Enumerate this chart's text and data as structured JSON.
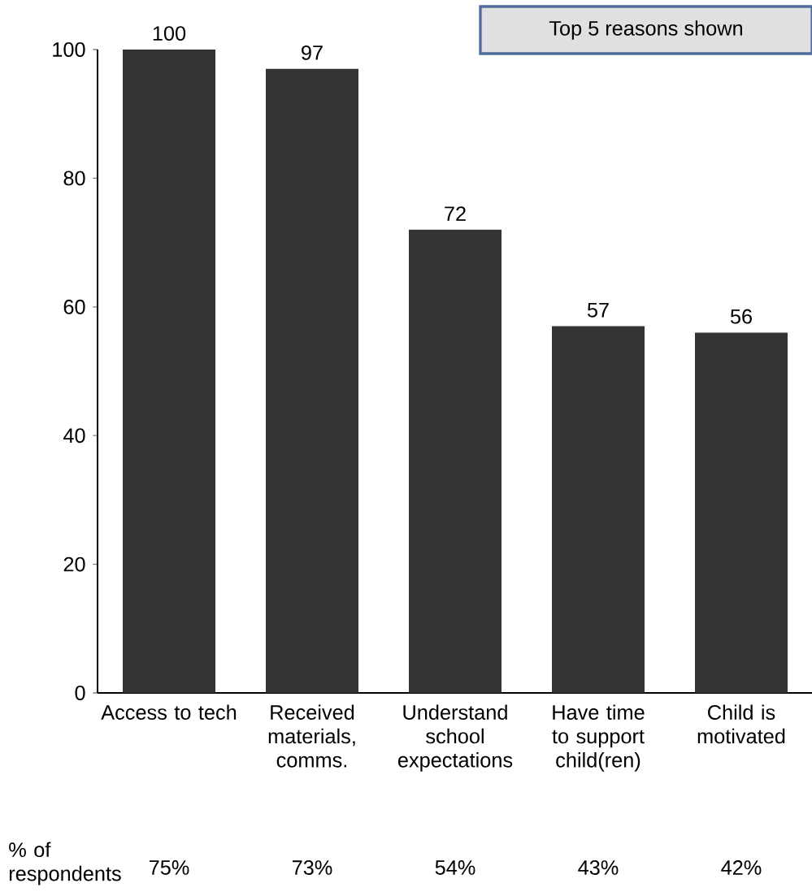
{
  "chart_data": {
    "type": "bar",
    "categories": [
      "Access to tech",
      "Received materials, comms.",
      "Understand school expectations",
      "Have time to support child(ren)",
      "Child is motivated"
    ],
    "values": [
      100,
      97,
      72,
      57,
      56
    ],
    "color": "#333333",
    "data_labels": true,
    "ylim": [
      0,
      100
    ],
    "yticks": [
      0,
      20,
      40,
      60,
      80,
      100
    ],
    "grid": false,
    "annotations": [
      "Top 5 reasons shown",
      "% of respondents",
      "75%",
      "73%",
      "54%",
      "43%",
      "42%"
    ]
  }
}
